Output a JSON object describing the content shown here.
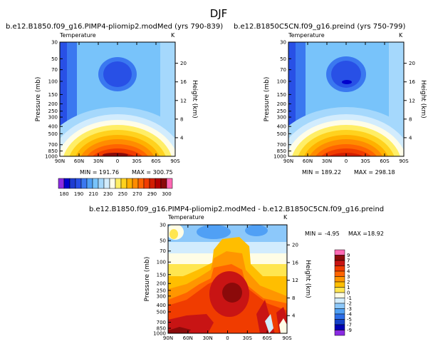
{
  "figure_title": "DJF",
  "chart_data": [
    {
      "type": "heatmap",
      "panel": "top-left",
      "title": "b.e12.B1850.f09_g16.PIMP4-pliomip2.modMed (yrs 790-839)",
      "variable": "Temperature",
      "units": "K",
      "xlabel": "",
      "ylabel": "Pressure (mb)",
      "ylabel_right": "Height (km)",
      "x_ticks": [
        "90N",
        "60N",
        "30N",
        "0",
        "30S",
        "60S",
        "90S"
      ],
      "y_ticks": [
        "30",
        "50",
        "70",
        "100",
        "150",
        "200",
        "250",
        "300",
        "400",
        "500",
        "700",
        "850",
        "1000"
      ],
      "y_ticks_right": [
        "20",
        "16",
        "12",
        "8",
        "4"
      ],
      "min": "191.76",
      "max": "300.75",
      "min_label": "MIN = 191.76",
      "max_label": "MAX = 300.75",
      "xlim": [
        90,
        -90
      ],
      "ylim": [
        1000,
        30
      ]
    },
    {
      "type": "heatmap",
      "panel": "top-right",
      "title": "b.e12.B1850C5CN.f09_g16.preind (yrs 750-799)",
      "variable": "Temperature",
      "units": "K",
      "xlabel": "",
      "ylabel": "Pressure (mb)",
      "ylabel_right": "Height (km)",
      "x_ticks": [
        "90N",
        "60N",
        "30N",
        "0",
        "30S",
        "60S",
        "90S"
      ],
      "y_ticks": [
        "30",
        "50",
        "70",
        "100",
        "150",
        "200",
        "250",
        "300",
        "400",
        "500",
        "700",
        "850",
        "1000"
      ],
      "y_ticks_right": [
        "20",
        "16",
        "12",
        "8",
        "4"
      ],
      "min": "189.22",
      "max": "298.18",
      "min_label": "MIN = 189.22",
      "max_label": "MAX = 298.18",
      "xlim": [
        90,
        -90
      ],
      "ylim": [
        1000,
        30
      ]
    },
    {
      "type": "heatmap",
      "panel": "bottom",
      "title": "b.e12.B1850.f09_g16.PIMP4-pliomip2.modMed - b.e12.B1850C5CN.f09_g16.preind",
      "variable": "Temperature",
      "units": "K",
      "xlabel": "",
      "ylabel": "Pressure (mb)",
      "ylabel_right": "Height (km)",
      "x_ticks": [
        "90N",
        "60N",
        "30N",
        "0",
        "30S",
        "60S",
        "90S"
      ],
      "y_ticks": [
        "30",
        "50",
        "70",
        "100",
        "150",
        "200",
        "250",
        "300",
        "400",
        "500",
        "700",
        "850",
        "1000"
      ],
      "y_ticks_right": [
        "20",
        "16",
        "12",
        "8",
        "4"
      ],
      "min": "-4.95",
      "max": "18.92",
      "min_label": "MIN =",
      "min_value": "-4.95",
      "max_label": "MAX =",
      "max_value": "18.92",
      "xlim": [
        90,
        -90
      ],
      "ylim": [
        1000,
        30
      ]
    }
  ],
  "colorbar_top": {
    "orientation": "horizontal",
    "labels": [
      "180",
      "190",
      "210",
      "230",
      "250",
      "270",
      "290",
      "300"
    ],
    "colors": [
      "#8a2be2",
      "#0000cd",
      "#1e3cd2",
      "#2850e6",
      "#3a78f0",
      "#50a0f5",
      "#78c3fa",
      "#a5d8fc",
      "#d2ecfd",
      "#fffde8",
      "#ffee66",
      "#ffd21e",
      "#ffb100",
      "#ff8c00",
      "#ff6400",
      "#f03c00",
      "#d21e00",
      "#b40000",
      "#8b0a0a",
      "#ff69b4"
    ]
  },
  "colorbar_diff": {
    "orientation": "vertical",
    "labels": [
      "9",
      "7",
      "5",
      "4",
      "3",
      "2",
      "1",
      "0",
      "-1",
      "-2",
      "-3",
      "-4",
      "-5",
      "-7",
      "-9"
    ],
    "colors": [
      "#ff69b4",
      "#8b0a0a",
      "#c81414",
      "#f03c00",
      "#ff6400",
      "#ff9600",
      "#ffbe00",
      "#ffe650",
      "#fffde6",
      "#d2ecfd",
      "#8cc8fa",
      "#50a0f5",
      "#2d6ee8",
      "#1440c8",
      "#0000b4",
      "#8a2be2"
    ]
  },
  "colors": {
    "background": "#ffffff",
    "axis": "#000000"
  }
}
